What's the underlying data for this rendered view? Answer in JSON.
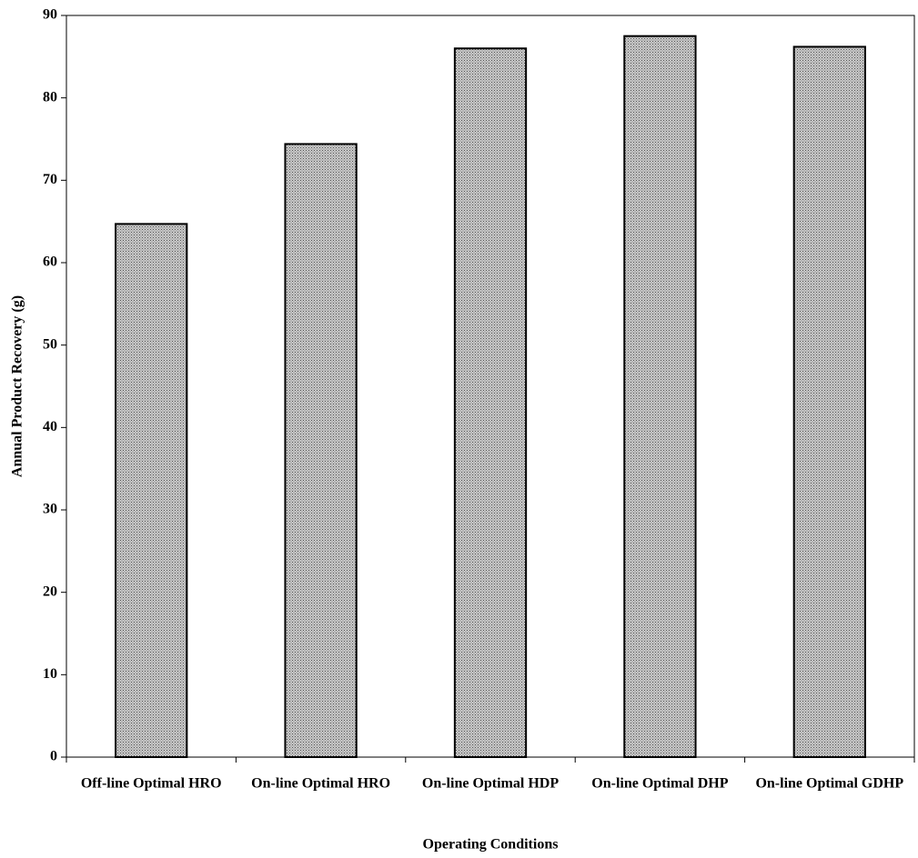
{
  "chart_data": {
    "type": "bar",
    "x_label": "Operating Conditions",
    "y_label": "Annual Product Recovery (g)",
    "categories": [
      "Off-line Optimal HRO",
      "On-line Optimal HRO",
      "On-line Optimal HDP",
      "On-line Optimal DHP",
      "On-line Optimal GDHP"
    ],
    "values": [
      64.7,
      74.4,
      86.0,
      87.5,
      86.2
    ],
    "color": "#a6a6a6",
    "ylim": [
      0,
      90
    ],
    "yticks": [
      0,
      10,
      20,
      30,
      40,
      50,
      60,
      70,
      80,
      90
    ]
  }
}
